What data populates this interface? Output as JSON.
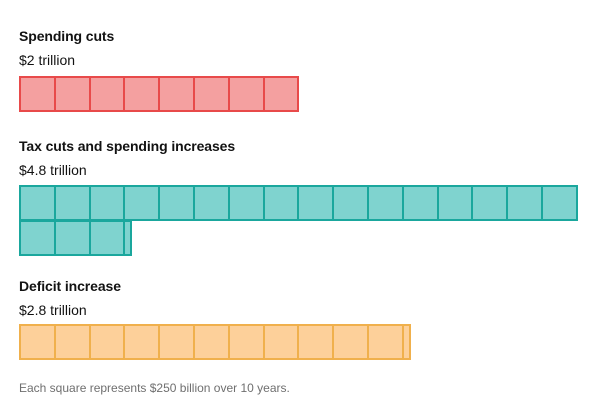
{
  "chart_data": {
    "type": "waffle",
    "unit_value": 0.25,
    "unit_label": "$250 billion",
    "squares_per_row": 16,
    "series": [
      {
        "name": "Spending cuts",
        "value_label": "$2 trillion",
        "value": 2.0,
        "squares": 8,
        "fill": "#f4a0a0",
        "stroke": "#e84a4a"
      },
      {
        "name": "Tax cuts and spending increases",
        "value_label": "$4.8 trillion",
        "value": 4.8,
        "squares": 19.2,
        "fill": "#7fd3cf",
        "stroke": "#1aa79d"
      },
      {
        "name": "Deficit increase",
        "value_label": "$2.8 trillion",
        "value": 2.8,
        "squares": 11.2,
        "fill": "#fdd09a",
        "stroke": "#f0b04c"
      }
    ],
    "footnote": "Each square represents $250 billion over 10 years."
  }
}
